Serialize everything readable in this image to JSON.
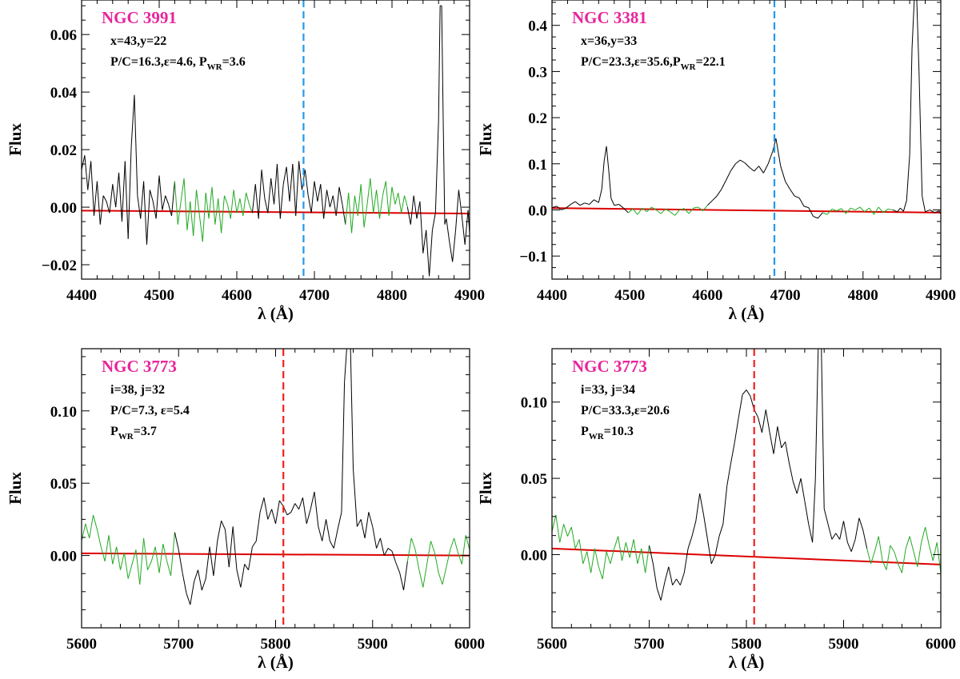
{
  "colors": {
    "title": "#E8259A",
    "continuum_fit": "#DD0000",
    "continuum_window": "#22AA22",
    "spectrum": "#000000",
    "line_blue": "#2299EE",
    "line_red": "#EE2222"
  },
  "chart_data": [
    {
      "type": "line",
      "title": "NGC 3991",
      "xlabel": "λ (Å)",
      "ylabel": "Flux",
      "xlim": [
        4400,
        4900
      ],
      "ylim": [
        -0.025,
        0.072
      ],
      "xticks": [
        4400,
        4500,
        4600,
        4700,
        4800,
        4900
      ],
      "xtick_labels": [
        "4400",
        "4500",
        "4600",
        "4700",
        "4800",
        "4900"
      ],
      "yticks": [
        -0.02,
        0.0,
        0.02,
        0.04,
        0.06
      ],
      "ytick_labels": [
        "−0.02",
        "0.00",
        "0.02",
        "0.04",
        "0.06"
      ],
      "annotations": [
        {
          "main": "x=43,y=22"
        },
        {
          "main": "P/C=16.3,ε=4.6,  P",
          "sub": "WR",
          "tail": "=3.6"
        }
      ],
      "vline": {
        "x": 4686,
        "color": "blue"
      },
      "continuum_fit": {
        "x": [
          4400,
          4900
        ],
        "y": [
          -0.0012,
          -0.0022
        ]
      },
      "green_windows": [
        [
          4520,
          4620
        ],
        [
          4740,
          4820
        ]
      ],
      "spectrum": {
        "x": [
          4400,
          4404,
          4408,
          4412,
          4416,
          4420,
          4424,
          4428,
          4432,
          4436,
          4440,
          4444,
          4448,
          4452,
          4456,
          4460,
          4464,
          4468,
          4472,
          4476,
          4480,
          4484,
          4488,
          4492,
          4496,
          4500,
          4504,
          4508,
          4512,
          4516,
          4520,
          4524,
          4528,
          4532,
          4536,
          4540,
          4544,
          4548,
          4552,
          4556,
          4560,
          4564,
          4568,
          4572,
          4576,
          4580,
          4584,
          4588,
          4592,
          4596,
          4600,
          4604,
          4608,
          4612,
          4616,
          4620,
          4624,
          4628,
          4632,
          4636,
          4640,
          4644,
          4648,
          4652,
          4656,
          4660,
          4664,
          4668,
          4672,
          4676,
          4680,
          4684,
          4688,
          4692,
          4696,
          4700,
          4704,
          4708,
          4712,
          4716,
          4720,
          4724,
          4728,
          4732,
          4736,
          4740,
          4744,
          4748,
          4752,
          4756,
          4760,
          4764,
          4768,
          4772,
          4776,
          4780,
          4784,
          4788,
          4792,
          4796,
          4800,
          4804,
          4808,
          4812,
          4816,
          4820,
          4824,
          4828,
          4832,
          4836,
          4840,
          4844,
          4848,
          4852,
          4856,
          4860,
          4862,
          4864,
          4866,
          4868,
          4870,
          4874,
          4878,
          4882,
          4886,
          4890,
          4894,
          4898,
          4900
        ],
        "y": [
          0.013,
          0.018,
          0.006,
          0.016,
          -0.003,
          0.009,
          -0.006,
          0.004,
          0.002,
          -0.002,
          0.008,
          0.0,
          0.012,
          -0.005,
          0.016,
          -0.011,
          0.021,
          0.039,
          0.004,
          -0.004,
          0.009,
          -0.013,
          0.006,
          0.002,
          -0.004,
          0.011,
          -0.001,
          0.004,
          0.001,
          -0.003,
          0.009,
          -0.006,
          0.002,
          0.01,
          -0.008,
          0.002,
          -0.01,
          0.006,
          -0.003,
          -0.012,
          0.005,
          -0.004,
          0.007,
          -0.006,
          0.003,
          -0.009,
          0.004,
          0.001,
          -0.004,
          0.006,
          -0.002,
          0.003,
          -0.003,
          0.005,
          0.001,
          -0.002,
          0.008,
          -0.004,
          0.013,
          0.003,
          -0.002,
          0.01,
          0.001,
          0.015,
          -0.004,
          0.008,
          0.014,
          0.002,
          0.015,
          -0.003,
          0.016,
          0.006,
          0.013,
          0.004,
          -0.002,
          0.009,
          0.002,
          0.008,
          -0.004,
          0.006,
          0.0,
          0.004,
          -0.003,
          0.007,
          0.001,
          -0.006,
          0.005,
          -0.009,
          0.004,
          -0.003,
          0.008,
          -0.007,
          0.001,
          0.01,
          -0.002,
          0.006,
          -0.004,
          0.004,
          0.009,
          -0.003,
          0.007,
          0.001,
          0.005,
          -0.002,
          0.004,
          0.0,
          -0.006,
          0.004,
          -0.004,
          0.002,
          -0.016,
          -0.008,
          -0.024,
          -0.008,
          -0.002,
          0.03,
          0.07,
          0.07,
          0.03,
          -0.006,
          -0.004,
          -0.012,
          -0.019,
          -0.008,
          0.006,
          -0.003,
          -0.013,
          -0.001,
          -0.009
        ]
      }
    },
    {
      "type": "line",
      "title": "NGC 3381",
      "xlabel": "λ (Å)",
      "ylabel": "Flux",
      "xlim": [
        4400,
        4900
      ],
      "ylim": [
        -0.15,
        0.455
      ],
      "xticks": [
        4400,
        4500,
        4600,
        4700,
        4800,
        4900
      ],
      "xtick_labels": [
        "4400",
        "4500",
        "4600",
        "4700",
        "4800",
        "4900"
      ],
      "yticks": [
        -0.1,
        0.0,
        0.1,
        0.2,
        0.3,
        0.4
      ],
      "ytick_labels": [
        "−0.1",
        "0.0",
        "0.1",
        "0.2",
        "0.3",
        "0.4"
      ],
      "annotations": [
        {
          "main": "x=36,y=33"
        },
        {
          "main": "P/C=23.3,ε=35.6,P",
          "sub": "WR",
          "tail": "=22.1"
        }
      ],
      "vline": {
        "x": 4686,
        "color": "blue"
      },
      "continuum_fit": {
        "x": [
          4400,
          4900
        ],
        "y": [
          0.004,
          -0.006
        ]
      },
      "green_windows": [
        [
          4500,
          4600
        ],
        [
          4750,
          4840
        ]
      ],
      "spectrum": {
        "x": [
          4400,
          4406,
          4412,
          4418,
          4424,
          4430,
          4436,
          4442,
          4448,
          4454,
          4460,
          4464,
          4467,
          4470,
          4473,
          4476,
          4480,
          4486,
          4492,
          4498,
          4504,
          4510,
          4516,
          4522,
          4528,
          4534,
          4540,
          4546,
          4552,
          4558,
          4564,
          4570,
          4576,
          4582,
          4588,
          4594,
          4600,
          4606,
          4612,
          4618,
          4624,
          4630,
          4636,
          4642,
          4648,
          4654,
          4660,
          4666,
          4672,
          4678,
          4684,
          4688,
          4694,
          4700,
          4706,
          4712,
          4718,
          4724,
          4730,
          4736,
          4742,
          4748,
          4754,
          4760,
          4766,
          4772,
          4778,
          4784,
          4790,
          4796,
          4802,
          4808,
          4814,
          4820,
          4826,
          4832,
          4838,
          4844,
          4848,
          4852,
          4856,
          4860,
          4863,
          4866,
          4869,
          4872,
          4876,
          4880,
          4886,
          4892,
          4898,
          4900
        ],
        "y": [
          0.005,
          0.008,
          0.0,
          0.004,
          0.012,
          0.018,
          0.01,
          0.015,
          0.012,
          0.022,
          0.016,
          0.045,
          0.105,
          0.138,
          0.085,
          0.025,
          0.01,
          0.012,
          0.004,
          -0.006,
          0.002,
          -0.01,
          0.004,
          -0.004,
          0.006,
          0.0,
          -0.008,
          0.002,
          -0.004,
          -0.012,
          0.0,
          0.003,
          -0.008,
          0.004,
          0.006,
          -0.002,
          0.01,
          0.02,
          0.03,
          0.045,
          0.065,
          0.085,
          0.1,
          0.108,
          0.102,
          0.092,
          0.084,
          0.095,
          0.08,
          0.1,
          0.128,
          0.155,
          0.095,
          0.062,
          0.045,
          0.03,
          0.026,
          0.008,
          0.005,
          -0.014,
          -0.018,
          -0.006,
          -0.01,
          0.002,
          -0.002,
          0.003,
          -0.008,
          0.004,
          0.0,
          0.006,
          -0.004,
          0.004,
          -0.01,
          0.006,
          -0.006,
          0.002,
          0.0,
          -0.004,
          0.004,
          -0.003,
          0.02,
          0.12,
          0.35,
          0.46,
          0.46,
          0.3,
          0.03,
          -0.004,
          0.0,
          -0.006,
          -0.002,
          -0.008
        ]
      }
    },
    {
      "type": "line",
      "title": "NGC 3773",
      "xlabel": "λ (Å)",
      "ylabel": "Flux",
      "xlim": [
        5600,
        6000
      ],
      "ylim": [
        -0.05,
        0.143
      ],
      "xticks": [
        5600,
        5700,
        5800,
        5900,
        6000
      ],
      "xtick_labels": [
        "5600",
        "5700",
        "5800",
        "5900",
        "6000"
      ],
      "yticks": [
        0.0,
        0.05,
        0.1
      ],
      "ytick_labels": [
        "0.00",
        "0.05",
        "0.10"
      ],
      "annotations": [
        {
          "main": "i=38, j=32"
        },
        {
          "main": "P/C=7.3,  ε=5.4"
        },
        {
          "main": "P",
          "sub": "WR",
          "tail": "=3.7"
        }
      ],
      "vline": {
        "x": 5808,
        "color": "red"
      },
      "continuum_fit": {
        "x": [
          5600,
          6000
        ],
        "y": [
          0.0015,
          0.0
        ]
      },
      "green_windows": [
        [
          5600,
          5695
        ],
        [
          5935,
          6000
        ]
      ],
      "spectrum": {
        "x": [
          5600,
          5604,
          5608,
          5612,
          5616,
          5620,
          5624,
          5628,
          5632,
          5636,
          5640,
          5644,
          5648,
          5652,
          5656,
          5660,
          5664,
          5668,
          5672,
          5676,
          5680,
          5684,
          5688,
          5692,
          5696,
          5700,
          5704,
          5708,
          5712,
          5716,
          5720,
          5724,
          5728,
          5732,
          5736,
          5740,
          5744,
          5748,
          5752,
          5756,
          5760,
          5764,
          5768,
          5772,
          5776,
          5780,
          5784,
          5788,
          5792,
          5796,
          5800,
          5804,
          5808,
          5812,
          5816,
          5820,
          5824,
          5828,
          5832,
          5836,
          5840,
          5844,
          5848,
          5852,
          5856,
          5860,
          5864,
          5868,
          5871,
          5874,
          5877,
          5880,
          5884,
          5888,
          5892,
          5896,
          5900,
          5904,
          5908,
          5912,
          5916,
          5920,
          5924,
          5928,
          5932,
          5936,
          5940,
          5944,
          5948,
          5952,
          5956,
          5960,
          5964,
          5968,
          5972,
          5976,
          5980,
          5984,
          5988,
          5992,
          5996,
          6000
        ],
        "y": [
          0.01,
          0.022,
          0.012,
          0.028,
          0.018,
          0.006,
          -0.004,
          0.014,
          -0.006,
          0.006,
          -0.01,
          0.002,
          -0.016,
          -0.006,
          0.004,
          -0.02,
          0.012,
          -0.01,
          -0.004,
          0.006,
          -0.012,
          0.008,
          -0.004,
          -0.014,
          0.016,
          0.004,
          -0.012,
          -0.026,
          -0.034,
          -0.018,
          -0.01,
          -0.024,
          -0.016,
          0.006,
          -0.014,
          0.01,
          0.024,
          0.018,
          -0.008,
          0.02,
          -0.01,
          -0.022,
          -0.006,
          -0.01,
          0.006,
          0.01,
          0.03,
          0.04,
          0.025,
          0.032,
          0.022,
          0.038,
          0.034,
          0.028,
          0.03,
          0.036,
          0.032,
          0.04,
          0.022,
          0.032,
          0.044,
          0.02,
          0.01,
          0.025,
          0.01,
          0.005,
          0.018,
          0.03,
          0.12,
          0.15,
          0.15,
          0.06,
          0.02,
          0.025,
          0.012,
          0.03,
          0.02,
          0.005,
          0.012,
          0.0,
          0.005,
          0.003,
          -0.005,
          -0.012,
          -0.024,
          -0.004,
          0.012,
          0.004,
          -0.01,
          -0.022,
          -0.006,
          0.01,
          0.002,
          -0.012,
          -0.02,
          -0.008,
          0.004,
          0.012,
          0.002,
          -0.006,
          0.014,
          0.004
        ]
      }
    },
    {
      "type": "line",
      "title": "NGC 3773",
      "xlabel": "λ (Å)",
      "ylabel": "Flux",
      "xlim": [
        5600,
        6000
      ],
      "ylim": [
        -0.048,
        0.135
      ],
      "xticks": [
        5600,
        5700,
        5800,
        5900,
        6000
      ],
      "xtick_labels": [
        "5600",
        "5700",
        "5800",
        "5900",
        "6000"
      ],
      "yticks": [
        0.0,
        0.05,
        0.1
      ],
      "ytick_labels": [
        "0.00",
        "0.05",
        "0.10"
      ],
      "annotations": [
        {
          "main": "i=33, j=34"
        },
        {
          "main": "P/C=33.3,ε=20.6"
        },
        {
          "main": "P",
          "sub": "WR",
          "tail": "=10.3"
        }
      ],
      "vline": {
        "x": 5808,
        "color": "red"
      },
      "continuum_fit": {
        "x": [
          5600,
          6000
        ],
        "y": [
          0.004,
          -0.0065
        ]
      },
      "green_windows": [
        [
          5600,
          5700
        ],
        [
          5925,
          6000
        ]
      ],
      "spectrum": {
        "x": [
          5600,
          5604,
          5608,
          5612,
          5616,
          5620,
          5624,
          5628,
          5632,
          5636,
          5640,
          5644,
          5648,
          5652,
          5656,
          5660,
          5664,
          5668,
          5672,
          5676,
          5680,
          5684,
          5688,
          5692,
          5696,
          5700,
          5704,
          5708,
          5712,
          5716,
          5720,
          5724,
          5728,
          5732,
          5736,
          5740,
          5744,
          5748,
          5752,
          5756,
          5760,
          5764,
          5768,
          5772,
          5776,
          5780,
          5784,
          5788,
          5792,
          5796,
          5800,
          5804,
          5808,
          5812,
          5816,
          5820,
          5824,
          5828,
          5832,
          5836,
          5840,
          5844,
          5848,
          5852,
          5856,
          5860,
          5864,
          5868,
          5871,
          5874,
          5877,
          5880,
          5884,
          5888,
          5892,
          5896,
          5900,
          5904,
          5908,
          5912,
          5916,
          5920,
          5924,
          5928,
          5932,
          5936,
          5940,
          5944,
          5948,
          5952,
          5956,
          5960,
          5964,
          5968,
          5972,
          5976,
          5980,
          5984,
          5988,
          5992,
          5996,
          6000
        ],
        "y": [
          0.015,
          0.026,
          0.008,
          0.02,
          0.012,
          0.018,
          0.004,
          0.01,
          -0.006,
          0.002,
          -0.012,
          0.004,
          -0.008,
          -0.016,
          0.002,
          -0.006,
          0.004,
          0.012,
          -0.004,
          0.008,
          -0.002,
          0.01,
          -0.006,
          0.004,
          -0.012,
          0.006,
          -0.006,
          -0.022,
          -0.03,
          -0.018,
          -0.008,
          -0.02,
          -0.016,
          -0.02,
          -0.012,
          0.004,
          0.012,
          0.022,
          0.04,
          0.026,
          0.01,
          -0.006,
          0.0,
          0.012,
          0.02,
          0.045,
          0.06,
          0.074,
          0.09,
          0.105,
          0.108,
          0.104,
          0.095,
          0.09,
          0.08,
          0.095,
          0.08,
          0.066,
          0.084,
          0.07,
          0.074,
          0.06,
          0.048,
          0.04,
          0.05,
          0.035,
          0.02,
          0.008,
          0.05,
          0.14,
          0.14,
          0.03,
          0.02,
          0.01,
          0.014,
          0.01,
          0.022,
          0.008,
          0.002,
          0.01,
          0.024,
          0.016,
          0.004,
          -0.006,
          0.002,
          0.012,
          -0.004,
          -0.01,
          0.006,
          0.002,
          -0.006,
          -0.012,
          0.004,
          0.012,
          0.002,
          -0.008,
          0.008,
          0.018,
          0.006,
          -0.004,
          0.008,
          -0.012
        ]
      }
    }
  ]
}
